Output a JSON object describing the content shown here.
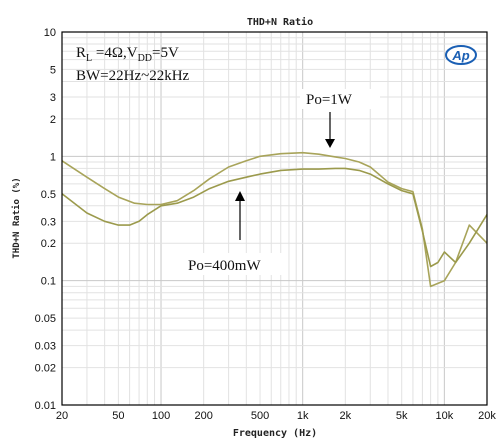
{
  "chart_data": {
    "type": "line",
    "title": "THD+N Ratio",
    "xlabel": "Frequency (Hz)",
    "ylabel": "THD+N Ratio (%)",
    "x_scale": "log",
    "y_scale": "log",
    "xlim": [
      20,
      20000
    ],
    "ylim": [
      0.01,
      10
    ],
    "x_ticks": [
      {
        "v": 20,
        "label": "20"
      },
      {
        "v": 50,
        "label": "50"
      },
      {
        "v": 100,
        "label": "100"
      },
      {
        "v": 200,
        "label": "200"
      },
      {
        "v": 500,
        "label": "500"
      },
      {
        "v": 1000,
        "label": "1k"
      },
      {
        "v": 2000,
        "label": "2k"
      },
      {
        "v": 5000,
        "label": "5k"
      },
      {
        "v": 10000,
        "label": "10k"
      },
      {
        "v": 20000,
        "label": "20k"
      }
    ],
    "y_ticks": [
      {
        "v": 10,
        "label": "10"
      },
      {
        "v": 5,
        "label": "5"
      },
      {
        "v": 3,
        "label": "3"
      },
      {
        "v": 2,
        "label": "2"
      },
      {
        "v": 1,
        "label": "1"
      },
      {
        "v": 0.5,
        "label": "0.5"
      },
      {
        "v": 0.3,
        "label": "0.3"
      },
      {
        "v": 0.2,
        "label": "0.2"
      },
      {
        "v": 0.1,
        "label": "0.1"
      },
      {
        "v": 0.05,
        "label": "0.05"
      },
      {
        "v": 0.03,
        "label": "0.03"
      },
      {
        "v": 0.02,
        "label": "0.02"
      },
      {
        "v": 0.01,
        "label": "0.01"
      }
    ],
    "grid": true,
    "conditions": {
      "line1": "R",
      "line1_sub": "L",
      "line1_mid": " =4Ω,V",
      "line1_sub2": "DD",
      "line1_end": "=5V",
      "line2": "BW=22Hz~22kHz"
    },
    "logo": "Ap",
    "series": [
      {
        "name": "Po=1W",
        "color": "#a8a45a",
        "x": [
          20,
          30,
          40,
          50,
          65,
          80,
          100,
          130,
          170,
          220,
          300,
          400,
          500,
          700,
          1000,
          1300,
          1700,
          2000,
          2500,
          3000,
          4000,
          5000,
          6000,
          7000,
          8000,
          9000,
          10000,
          12000,
          15000,
          20000
        ],
        "y": [
          0.92,
          0.68,
          0.55,
          0.47,
          0.42,
          0.41,
          0.41,
          0.44,
          0.53,
          0.66,
          0.82,
          0.92,
          1.0,
          1.05,
          1.07,
          1.04,
          0.99,
          0.96,
          0.9,
          0.82,
          0.62,
          0.55,
          0.52,
          0.26,
          0.09,
          0.095,
          0.1,
          0.14,
          0.28,
          0.2
        ]
      },
      {
        "name": "Po=400mW",
        "color": "#9b9a4c",
        "x": [
          20,
          30,
          40,
          50,
          60,
          70,
          80,
          100,
          130,
          170,
          220,
          300,
          400,
          500,
          700,
          1000,
          1300,
          1700,
          2000,
          2500,
          3000,
          4000,
          5000,
          6000,
          7000,
          8000,
          9000,
          10000,
          12000,
          15000,
          20000
        ],
        "y": [
          0.5,
          0.35,
          0.3,
          0.28,
          0.28,
          0.3,
          0.34,
          0.4,
          0.42,
          0.47,
          0.55,
          0.63,
          0.68,
          0.72,
          0.77,
          0.79,
          0.79,
          0.8,
          0.8,
          0.77,
          0.72,
          0.6,
          0.53,
          0.5,
          0.25,
          0.13,
          0.14,
          0.17,
          0.14,
          0.2,
          0.34
        ]
      }
    ],
    "annotations": [
      {
        "text": "Po=1W",
        "arrow": "down",
        "x": 1500,
        "y": 1.0
      },
      {
        "text": "Po=400mW",
        "arrow": "up",
        "x": 370,
        "y": 0.63
      }
    ]
  }
}
